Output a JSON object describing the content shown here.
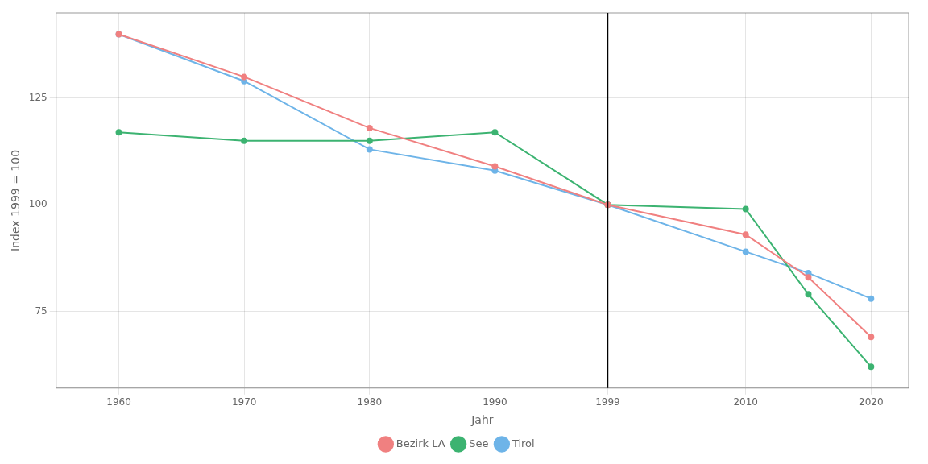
{
  "chart_data": {
    "type": "line",
    "x": [
      1960,
      1970,
      1980,
      1990,
      1999,
      2010,
      2015,
      2020
    ],
    "series": [
      {
        "name": "Bezirk LA",
        "color": "#F08080",
        "marker": "circle",
        "values": [
          140,
          130,
          118,
          109,
          100,
          93,
          83,
          69
        ]
      },
      {
        "name": "See",
        "color": "#3CB371",
        "marker": "circle",
        "values": [
          117,
          115,
          115,
          117,
          100,
          99,
          79,
          62
        ]
      },
      {
        "name": "Tirol",
        "color": "#6EB4E8",
        "marker": "circle",
        "values": [
          140,
          129,
          113,
          108,
          100,
          89,
          84,
          78
        ]
      }
    ],
    "xlabel": "Jahr",
    "ylabel": "Index 1999 = 100",
    "xlim": [
      1955,
      2023
    ],
    "ylim": [
      57,
      145
    ],
    "xticks": [
      1960,
      1970,
      1980,
      1990,
      1999,
      2010,
      2020
    ],
    "yticks": [
      75,
      100,
      125
    ],
    "vline": 1999,
    "grid": true,
    "legend": "bottom"
  }
}
